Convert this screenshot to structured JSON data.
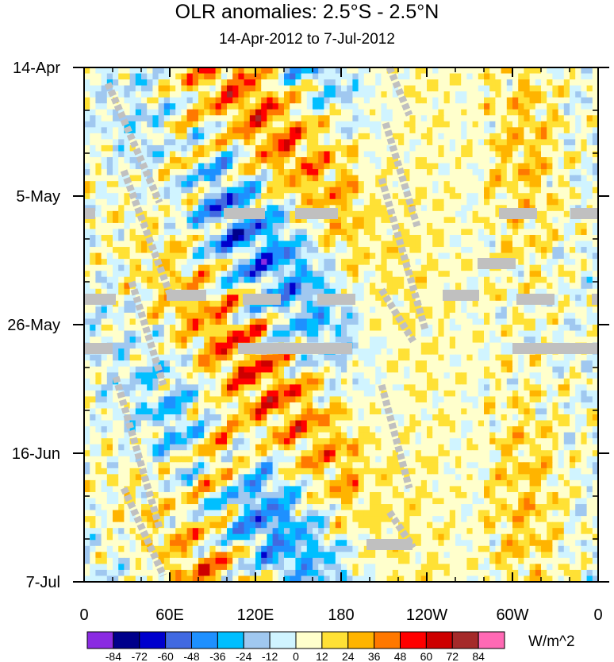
{
  "chart_data": {
    "type": "heatmap",
    "title": "OLR anomalies: 2.5°S - 2.5°N",
    "subtitle": "14-Apr-2012 to 7-Jul-2012",
    "x_tick_labels": [
      "0",
      "60E",
      "120E",
      "180",
      "120W",
      "60W",
      "0"
    ],
    "x_tick_longitudes": [
      0,
      60,
      120,
      180,
      240,
      300,
      360
    ],
    "xlim": [
      0,
      360
    ],
    "y_tick_labels": [
      "14-Apr",
      "5-May",
      "26-May",
      "16-Jun",
      "7-Jul"
    ],
    "y_tick_dates": [
      "2012-04-14",
      "2012-05-05",
      "2012-05-26",
      "2012-06-16",
      "2012-07-07"
    ],
    "ylim": [
      "2012-04-14",
      "2012-07-07"
    ],
    "colorbar": {
      "units": "W/m^2",
      "levels": [
        -84,
        -72,
        -60,
        -48,
        -36,
        -24,
        -12,
        0,
        12,
        24,
        36,
        48,
        60,
        72,
        84
      ],
      "colors": [
        "#8a2be2",
        "#00008b",
        "#0000cd",
        "#4169e1",
        "#1e90ff",
        "#00bfff",
        "#a0c8f0",
        "#d0f4ff",
        "#ffffcc",
        "#ffe135",
        "#ffb400",
        "#ff7800",
        "#ff0000",
        "#cd0000",
        "#a52a2a",
        "#ff69b4"
      ]
    },
    "missing_color": "#c0c0c0"
  }
}
